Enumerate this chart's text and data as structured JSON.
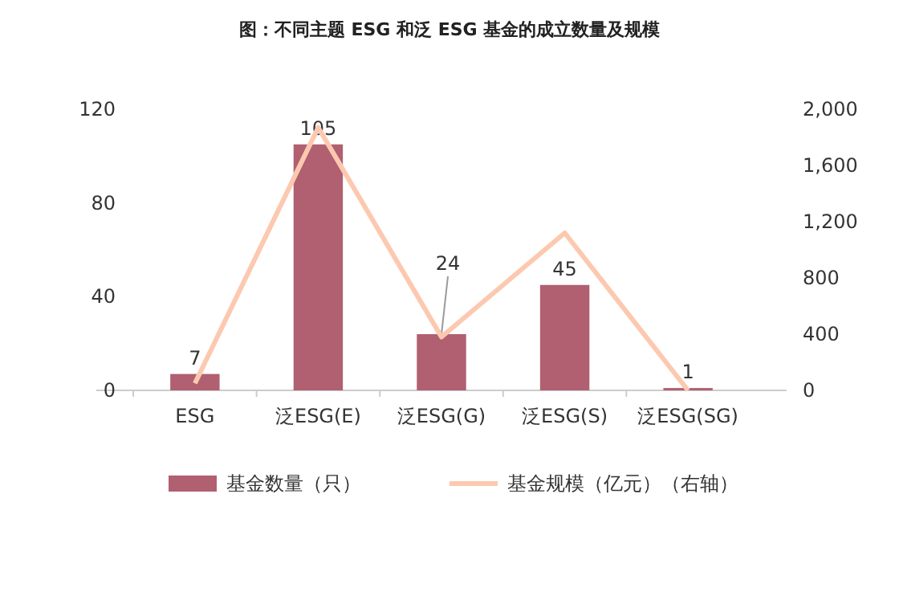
{
  "chart_data": {
    "type": "bar",
    "title": "图：不同主题 ESG 和泛 ESG 基金的成立数量及规模",
    "categories": [
      "ESG",
      "泛ESG(E)",
      "泛ESG(G)",
      "泛ESG(S)",
      "泛ESG(SG)"
    ],
    "series": [
      {
        "name": "基金数量（只）",
        "color": "#b06070",
        "values": [
          7,
          105,
          24,
          45,
          1
        ],
        "value_labels": [
          "7",
          "105",
          "24",
          "45",
          "1"
        ]
      },
      {
        "name": "基金规模（亿元）（右轴）",
        "type": "line",
        "axis": "y2",
        "color": "#fcc9b0",
        "values": [
          50,
          1870,
          380,
          1120,
          0
        ]
      }
    ],
    "ylim": [
      0,
      120
    ],
    "yticks": [
      0,
      40,
      80,
      120
    ],
    "y2lim": [
      0,
      2000
    ],
    "y2ticks": [
      {
        "value": 0,
        "label": "0"
      },
      {
        "value": 400,
        "label": "400"
      },
      {
        "value": 800,
        "label": "800"
      },
      {
        "value": 1200,
        "label": "1,200"
      },
      {
        "value": 1600,
        "label": "1,600"
      },
      {
        "value": 2000,
        "label": "2,000"
      }
    ],
    "legend": "bottom",
    "grid": false
  }
}
